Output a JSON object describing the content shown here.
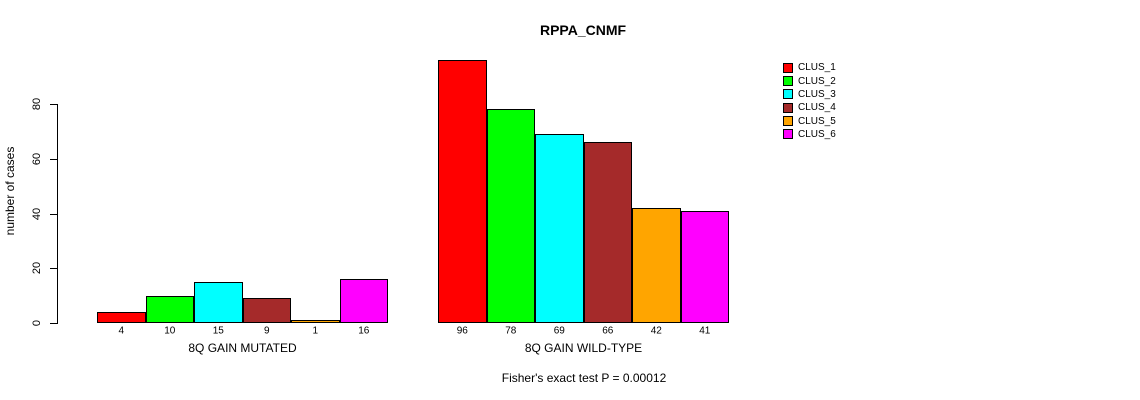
{
  "title": "RPPA_CNMF",
  "chart_data": {
    "type": "bar",
    "title": "RPPA_CNMF",
    "xlabel": "",
    "ylabel": "number of cases",
    "ylim": [
      0,
      97
    ],
    "yticks": [
      0,
      20,
      40,
      60,
      80
    ],
    "grid": false,
    "legend_position": "right",
    "legend": [
      "CLUS_1",
      "CLUS_2",
      "CLUS_3",
      "CLUS_4",
      "CLUS_5",
      "CLUS_6"
    ],
    "series_colors": [
      "#ff0000",
      "#00ff00",
      "#00ffff",
      "#a52a2a",
      "#ffa500",
      "#ff00ff"
    ],
    "groups": [
      {
        "label": "8Q GAIN MUTATED",
        "values": [
          4,
          10,
          15,
          9,
          1,
          16
        ]
      },
      {
        "label": "8Q GAIN WILD-TYPE",
        "values": [
          96,
          78,
          69,
          66,
          42,
          41
        ]
      }
    ],
    "bar_value_labels_shown": true,
    "annotation": "Fisher's exact test P = 0.00012",
    "axis_color": "#000000",
    "background_color": "#ffffff"
  }
}
